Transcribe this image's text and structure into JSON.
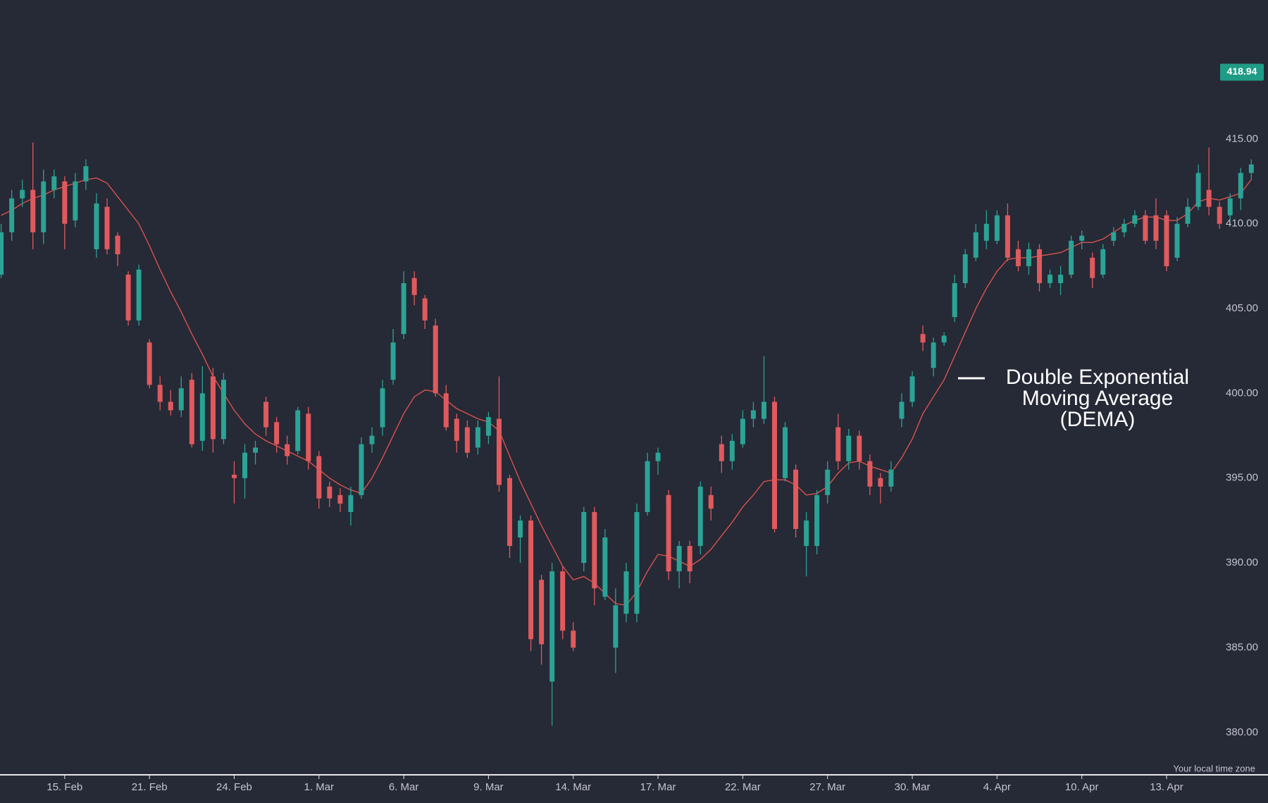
{
  "chart_data": {
    "type": "candlestick",
    "categories": [
      null,
      null,
      null,
      null,
      null,
      null,
      "15. Feb",
      null,
      null,
      null,
      null,
      null,
      null,
      null,
      "21. Feb",
      null,
      null,
      null,
      null,
      null,
      null,
      null,
      "24. Feb",
      null,
      null,
      null,
      null,
      null,
      null,
      null,
      "1. Mar",
      null,
      null,
      null,
      null,
      null,
      null,
      null,
      "6. Mar",
      null,
      null,
      null,
      null,
      null,
      null,
      null,
      "9. Mar",
      null,
      null,
      null,
      null,
      null,
      null,
      null,
      "14. Mar",
      null,
      null,
      null,
      null,
      null,
      null,
      null,
      "17. Mar",
      null,
      null,
      null,
      null,
      null,
      null,
      null,
      "22. Mar",
      null,
      null,
      null,
      null,
      null,
      null,
      null,
      "27. Mar",
      null,
      null,
      null,
      null,
      null,
      null,
      null,
      "30. Mar",
      null,
      null,
      null,
      null,
      null,
      null,
      null,
      "4. Apr",
      null,
      null,
      null,
      null,
      null,
      null,
      null,
      "10. Apr",
      null,
      null,
      null,
      null,
      null,
      null,
      null,
      "13. Apr",
      null,
      null,
      null,
      null,
      null,
      null,
      null,
      null
    ],
    "open": [
      407,
      409.5,
      411.5,
      412,
      409.5,
      412,
      412.5,
      410.2,
      412.5,
      408.5,
      411,
      409.3,
      407,
      404.3,
      403,
      400.5,
      399.5,
      399,
      400.8,
      397.2,
      401,
      397.3,
      395.2,
      395,
      396.5,
      399.5,
      398.3,
      397,
      396.6,
      398.8,
      396.3,
      394.5,
      394,
      393,
      394,
      397,
      398,
      400.8,
      403.5,
      406.8,
      405.6,
      404,
      400,
      398.5,
      398,
      396.8,
      397.5,
      398.5,
      395,
      391.5,
      392.5,
      389,
      383,
      389.5,
      386,
      390,
      393,
      388,
      385,
      387,
      387,
      393,
      396,
      394,
      389.5,
      391,
      391,
      394,
      397,
      396,
      397,
      398.5,
      398.5,
      399.5,
      395,
      395.5,
      391,
      391,
      394,
      398,
      396,
      397.5,
      396,
      395,
      394.5,
      398.5,
      399.5,
      403.5,
      401.5,
      403,
      404.5,
      406.5,
      408,
      409,
      409,
      410.5,
      408.5,
      407.5,
      408.5,
      406.5,
      406.5,
      407,
      409,
      408,
      407,
      409,
      409.5,
      410,
      410.5,
      410.5,
      410.5,
      408,
      410,
      411,
      412,
      411,
      410.5,
      411.5,
      413
    ],
    "high": [
      410,
      412,
      412.6,
      414.8,
      413.2,
      413.2,
      412.8,
      413,
      413.8,
      411.8,
      411.5,
      409.5,
      407.2,
      407.6,
      403.2,
      401,
      400.2,
      401,
      401.2,
      401.6,
      401.5,
      401.2,
      396,
      397,
      397.2,
      399.8,
      398.6,
      397.5,
      399.2,
      399.2,
      396.6,
      394.8,
      394.4,
      394.5,
      397.4,
      398,
      400.8,
      403.8,
      407.2,
      407.2,
      405.8,
      404.4,
      400.5,
      398.8,
      398.4,
      398.4,
      398.9,
      401,
      395.2,
      392.8,
      392.8,
      389.3,
      390,
      389.8,
      386.5,
      393.3,
      393.3,
      392,
      388.5,
      390,
      393.5,
      396.5,
      396.8,
      394.3,
      391.3,
      391.3,
      394.8,
      394.5,
      397.5,
      397.6,
      399,
      399.5,
      402.2,
      399.8,
      398.3,
      395.8,
      393,
      394.3,
      396,
      398.8,
      397.9,
      397.8,
      396.4,
      395.3,
      396,
      400,
      401.3,
      404,
      403.3,
      403.6,
      407,
      408.5,
      410,
      410.8,
      410.8,
      411.2,
      409,
      408.9,
      408.8,
      407.3,
      407.5,
      409.3,
      409.6,
      408.3,
      408.8,
      409.8,
      410.3,
      410.8,
      410.8,
      411.5,
      410.8,
      410.4,
      411.5,
      413.5,
      414.5,
      411.3,
      411.8,
      413.3,
      413.8
    ],
    "low": [
      406.8,
      409,
      411,
      408.5,
      408.8,
      411.5,
      408.5,
      409.8,
      412,
      408,
      408.2,
      407.5,
      404,
      404,
      400.3,
      399,
      398.7,
      398.6,
      396.8,
      396.6,
      396.5,
      397,
      393.5,
      393.8,
      395.8,
      397.5,
      396.5,
      395.8,
      396.4,
      395.5,
      393.2,
      393.3,
      393,
      392.2,
      393.8,
      396.5,
      397.5,
      400.5,
      403.2,
      405.2,
      403.8,
      399.8,
      397.8,
      396.5,
      396.2,
      396.4,
      397,
      394.2,
      390.3,
      390,
      384.8,
      384,
      380.4,
      385.5,
      384.8,
      389.5,
      387.5,
      387.8,
      383.5,
      386.5,
      386.5,
      392.8,
      395.2,
      389,
      388.5,
      388.8,
      390.5,
      392.5,
      395.3,
      395.5,
      396.8,
      398,
      398.2,
      391.8,
      394.8,
      391.5,
      389.2,
      390.5,
      393.5,
      395.5,
      395.5,
      395.5,
      394,
      393.5,
      394.2,
      398,
      399.2,
      402.5,
      401,
      402.8,
      404.2,
      406.2,
      407.8,
      408.5,
      408.8,
      407.8,
      407.2,
      407,
      406,
      406.2,
      405.8,
      406.8,
      408.5,
      406.2,
      406.8,
      408.7,
      409.2,
      409.8,
      408.8,
      408.5,
      407.2,
      407.8,
      409.8,
      410.8,
      410.5,
      409.7,
      410.2,
      410.8,
      412.6
    ],
    "close": [
      409.5,
      411.5,
      412,
      409.5,
      412.5,
      412.8,
      410,
      412.5,
      413.4,
      411.2,
      408.5,
      408.2,
      404.3,
      407.3,
      400.5,
      399.5,
      399,
      400.3,
      397,
      400,
      397.3,
      400.8,
      395,
      396.5,
      396.8,
      398,
      397,
      396.3,
      399,
      396,
      393.8,
      393.8,
      393.5,
      394,
      397,
      397.5,
      400.3,
      403,
      406.5,
      405.8,
      404.3,
      400,
      398,
      397.2,
      396.5,
      398,
      398.6,
      394.6,
      391,
      392.5,
      385.5,
      385.2,
      389.5,
      386,
      385,
      393,
      388.5,
      391.5,
      387.5,
      389.5,
      393,
      396,
      396.5,
      389.5,
      391,
      389.5,
      394.5,
      393.2,
      396,
      397.2,
      398.5,
      399,
      399.5,
      392,
      398,
      392,
      392.5,
      394,
      395.5,
      396,
      397.5,
      396,
      394.5,
      394.5,
      395.5,
      399.5,
      401,
      403,
      403,
      403.4,
      406.5,
      408.2,
      409.5,
      410,
      410.5,
      408,
      407.5,
      408.5,
      406.5,
      407,
      407,
      409,
      409.3,
      406.8,
      408.5,
      409.5,
      410,
      410.5,
      409,
      409,
      407.5,
      410,
      411,
      413,
      411,
      410,
      411.5,
      413,
      413.5
    ],
    "up_color": "#2ba395",
    "down_color": "#e05a5d",
    "line": {
      "color": "#d9534c",
      "values": [
        410.5,
        410.8,
        411.2,
        411.5,
        411.7,
        412,
        412.2,
        412.4,
        412.6,
        412.7,
        412.4,
        411.6,
        410.8,
        410,
        408.7,
        407.3,
        406,
        404.8,
        403.5,
        402.3,
        401,
        400,
        399,
        398.2,
        397.6,
        397.2,
        396.9,
        396.6,
        396.3,
        396,
        395.5,
        395,
        394.6,
        394.3,
        394.1,
        395,
        396.2,
        397.5,
        398.8,
        399.8,
        400.2,
        400.1,
        399.6,
        399.1,
        398.8,
        398.5,
        398.3,
        397.8,
        396.3,
        394.8,
        393.5,
        392.2,
        391,
        389.8,
        389,
        389.2,
        388.8,
        388.2,
        387.6,
        387.5,
        388.3,
        389.5,
        390.5,
        390.4,
        390.1,
        389.8,
        390.2,
        390.8,
        391.6,
        392.4,
        393.3,
        394,
        394.8,
        394.9,
        394.9,
        394.6,
        394,
        394.1,
        394.5,
        395.3,
        395.9,
        396,
        395.7,
        395.5,
        395.3,
        396.2,
        397.3,
        398.8,
        399.8,
        400.8,
        402.2,
        403.6,
        405,
        406.2,
        407.2,
        407.9,
        408,
        408,
        408.1,
        408.2,
        408.3,
        408.6,
        408.9,
        408.9,
        409.1,
        409.5,
        409.9,
        410.2,
        410.4,
        410.4,
        410.2,
        410.2,
        410.6,
        411.3,
        411.5,
        411.4,
        411.6,
        411.8,
        412.6
      ]
    },
    "annotation": [
      "Double Exponential",
      "Moving Average",
      "(DEMA)"
    ],
    "last_price": {
      "value": 418.94,
      "label": "418.94",
      "color": "#1f9c86"
    },
    "footnote": "Your local time zone",
    "ylim": [
      377.5,
      423.2
    ],
    "yticks": [
      {
        "value": 380,
        "label": "380.00"
      },
      {
        "value": 385,
        "label": "385.00"
      },
      {
        "value": 390,
        "label": "390.00"
      },
      {
        "value": 395,
        "label": "395.00"
      },
      {
        "value": 400,
        "label": "400.00"
      },
      {
        "value": 405,
        "label": "405.00"
      },
      {
        "value": 410,
        "label": "410.00"
      },
      {
        "value": 415,
        "label": "415.00"
      }
    ]
  }
}
